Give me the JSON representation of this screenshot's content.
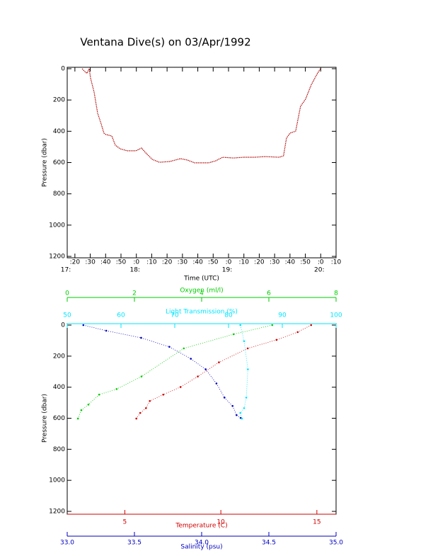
{
  "chart_data": [
    {
      "type": "line",
      "title": "Ventana Dive(s) on 03/Apr/1992",
      "x_label": "Time (UTC)",
      "y_label": "Pressure (dbar)",
      "color": "#b00000",
      "x": [
        24.7,
        26,
        27.8,
        29.3,
        30.2,
        32.5,
        34.8,
        37.1,
        38.9,
        40.3,
        44,
        46.3,
        49.5,
        54.1,
        59.7,
        63.4,
        65.8,
        70.4,
        75,
        81.8,
        88.7,
        93.3,
        97.9,
        107,
        111.6,
        116.2,
        123.2,
        130,
        137,
        143.9,
        153,
        155.8,
        157.7,
        160,
        163.7,
        166.9,
        170.1,
        173.8,
        177.5,
        179.8
      ],
      "values": [
        0,
        14,
        30,
        0,
        60,
        150,
        285,
        353,
        412,
        421,
        430,
        489,
        512,
        525,
        525,
        507,
        535,
        580,
        598,
        593,
        575,
        584,
        602,
        602,
        589,
        566,
        571,
        566,
        566,
        562,
        566,
        557,
        444,
        412,
        399,
        240,
        195,
        104,
        36,
        0
      ],
      "xlim": [
        15,
        190
      ],
      "xticks": [
        {
          "value": 20,
          "label": ":20"
        },
        {
          "value": 30,
          "label": ":30"
        },
        {
          "value": 40,
          "label": ":40"
        },
        {
          "value": 50,
          "label": ":50"
        },
        {
          "value": 60,
          "label": ":0"
        },
        {
          "value": 70,
          "label": ":10"
        },
        {
          "value": 80,
          "label": ":20"
        },
        {
          "value": 90,
          "label": ":30"
        },
        {
          "value": 100,
          "label": ":40"
        },
        {
          "value": 110,
          "label": ":50"
        },
        {
          "value": 120,
          "label": ":0"
        },
        {
          "value": 130,
          "label": ":10"
        },
        {
          "value": 140,
          "label": ":20"
        },
        {
          "value": 150,
          "label": ":30"
        },
        {
          "value": 160,
          "label": ":40"
        },
        {
          "value": 170,
          "label": ":50"
        },
        {
          "value": 180,
          "label": ":0"
        },
        {
          "value": 190,
          "label": ":10"
        }
      ],
      "hour_ticks": [
        {
          "value": 15,
          "label": "17:"
        },
        {
          "value": 60,
          "label": "18:"
        },
        {
          "value": 120,
          "label": "19:"
        },
        {
          "value": 180,
          "label": "20:"
        }
      ],
      "ylim": [
        0,
        1200
      ],
      "yticks": [
        0,
        200,
        400,
        600,
        800,
        1000,
        1200
      ],
      "y_inverted": true
    },
    {
      "type": "profile",
      "y_label": "Pressure (dbar)",
      "ylim": [
        0,
        1200
      ],
      "yticks": [
        0,
        200,
        400,
        600,
        800,
        1000,
        1200
      ],
      "y_inverted": true,
      "x_axes": [
        {
          "label": "Oxygen (ml/l)",
          "color": "#00cc00",
          "lim": [
            0,
            8
          ],
          "ticks": [
            0,
            2,
            4,
            6,
            8
          ],
          "position": "top-outer"
        },
        {
          "label": "Light Transmission (%)",
          "color": "#00e5ff",
          "lim": [
            50,
            100
          ],
          "ticks": [
            50,
            60,
            70,
            80,
            90,
            100
          ],
          "position": "top"
        },
        {
          "label": "Temperature (C)",
          "color": "#d00000",
          "lim": [
            2,
            16
          ],
          "ticks": [
            5,
            10,
            15
          ],
          "position": "bottom"
        },
        {
          "label": "Salinity (psu)",
          "color": "#0000c0",
          "lim": [
            33,
            35
          ],
          "ticks": [
            {
              "value": 33,
              "label": "33.0"
            },
            {
              "value": 33.5,
              "label": "33.5"
            },
            {
              "value": 34,
              "label": "34.0"
            },
            {
              "value": 34.5,
              "label": "34.5"
            },
            {
              "value": 35,
              "label": "35.0"
            }
          ],
          "position": "bottom-outer"
        }
      ],
      "series": [
        {
          "color": "#d00000",
          "x_axis": 2,
          "values": [
            14.7,
            14.0,
            12.9,
            11.4,
            9.9,
            8.8,
            7.9,
            7.0,
            6.3,
            6.1,
            5.8,
            5.6
          ],
          "pressure": [
            0,
            45,
            95,
            150,
            240,
            331,
            399,
            448,
            489,
            535,
            566,
            602
          ]
        },
        {
          "color": "#0000c0",
          "x_axis": 3,
          "values": [
            33.12,
            33.29,
            33.55,
            33.76,
            33.92,
            34.03,
            34.11,
            34.17,
            34.23,
            34.26,
            34.29
          ],
          "pressure": [
            0,
            36,
            82,
            140,
            217,
            285,
            376,
            467,
            521,
            580,
            598
          ]
        },
        {
          "color": "#00e5ff",
          "x_axis": 1,
          "values": [
            82.2,
            82.9,
            83.6,
            83.3,
            82.9,
            82.2,
            82.5
          ],
          "pressure": [
            0,
            104,
            285,
            467,
            535,
            566,
            602
          ]
        },
        {
          "color": "#00cc00",
          "x_axis": 0,
          "values": [
            6.1,
            4.95,
            3.47,
            2.21,
            1.47,
            0.95,
            0.63,
            0.42,
            0.32
          ],
          "pressure": [
            0,
            59,
            150,
            331,
            412,
            448,
            512,
            548,
            602
          ]
        }
      ]
    }
  ]
}
